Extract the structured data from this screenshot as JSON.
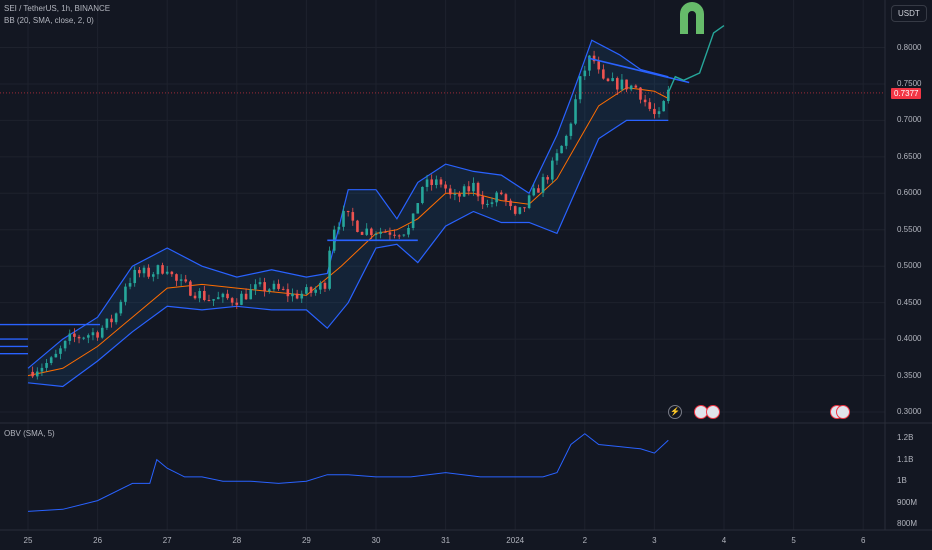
{
  "main_legend": {
    "symbol_line": "SEI / TetherUS, 1h, BINANCE",
    "indicator_line": "BB (20, SMA, close, 2, 0)"
  },
  "obv_legend": "OBV (SMA, 5)",
  "currency_button": "USDT",
  "current_price": "0.7377",
  "colors": {
    "background": "#131722",
    "up_candle": "#26a69a",
    "down_candle": "#ef5350",
    "bb_band": "#2962ff",
    "bb_basis": "#ff6d00",
    "bb_fill": "rgba(33,150,243,0.10)",
    "obv_line": "#2962ff",
    "trend_line": "#2962ff",
    "projection": "#26a69a",
    "price_tag": "#f23645",
    "magnet_icon": "#66bb6a"
  },
  "icons": [
    "magnet-icon",
    "lightning-icon",
    "us-flag-icon"
  ],
  "chart_data": [
    {
      "type": "candlestick",
      "title": "SEI / TetherUS, 1h, BINANCE",
      "x_ticks": [
        "25",
        "26",
        "27",
        "28",
        "29",
        "30",
        "31",
        "2024",
        "2",
        "3",
        "4",
        "5",
        "6"
      ],
      "y_ticks": [
        "0.8000",
        "0.7500",
        "0.7000",
        "0.6500",
        "0.6000",
        "0.5500",
        "0.5000",
        "0.4500",
        "0.4000",
        "0.3500",
        "0.3000"
      ],
      "ylim": [
        0.29,
        0.86
      ],
      "last_price": 0.7377,
      "close_path": [
        [
          0,
          0.355
        ],
        [
          0.35,
          0.37
        ],
        [
          0.6,
          0.4
        ],
        [
          1.0,
          0.41
        ],
        [
          1.25,
          0.43
        ],
        [
          1.4,
          0.475
        ],
        [
          1.55,
          0.49
        ],
        [
          1.75,
          0.49
        ],
        [
          2.0,
          0.5
        ],
        [
          2.1,
          0.48
        ],
        [
          2.3,
          0.47
        ],
        [
          2.6,
          0.455
        ],
        [
          3.0,
          0.455
        ],
        [
          3.3,
          0.47
        ],
        [
          3.5,
          0.47
        ],
        [
          3.8,
          0.46
        ],
        [
          4.1,
          0.465
        ],
        [
          4.3,
          0.48
        ],
        [
          4.35,
          0.55
        ],
        [
          4.55,
          0.57
        ],
        [
          4.8,
          0.55
        ],
        [
          5.2,
          0.548
        ],
        [
          5.5,
          0.55
        ],
        [
          5.65,
          0.61
        ],
        [
          5.95,
          0.615
        ],
        [
          6.1,
          0.59
        ],
        [
          6.4,
          0.61
        ],
        [
          6.6,
          0.583
        ],
        [
          6.8,
          0.6
        ],
        [
          7.0,
          0.565
        ],
        [
          7.2,
          0.59
        ],
        [
          7.5,
          0.63
        ],
        [
          7.75,
          0.68
        ],
        [
          7.95,
          0.76
        ],
        [
          8.1,
          0.79
        ],
        [
          8.25,
          0.75
        ],
        [
          8.5,
          0.75
        ],
        [
          8.75,
          0.745
        ],
        [
          8.9,
          0.72
        ],
        [
          9.05,
          0.7
        ],
        [
          9.2,
          0.738
        ]
      ],
      "bollinger": {
        "upper": [
          [
            0,
            0.36
          ],
          [
            0.5,
            0.4
          ],
          [
            1.0,
            0.43
          ],
          [
            1.5,
            0.5
          ],
          [
            2.0,
            0.525
          ],
          [
            2.5,
            0.5
          ],
          [
            3.0,
            0.485
          ],
          [
            3.5,
            0.495
          ],
          [
            4.0,
            0.485
          ],
          [
            4.3,
            0.49
          ],
          [
            4.6,
            0.605
          ],
          [
            5.0,
            0.605
          ],
          [
            5.3,
            0.565
          ],
          [
            5.6,
            0.615
          ],
          [
            6.0,
            0.64
          ],
          [
            6.4,
            0.63
          ],
          [
            6.8,
            0.625
          ],
          [
            7.2,
            0.6
          ],
          [
            7.6,
            0.68
          ],
          [
            7.8,
            0.73
          ],
          [
            8.1,
            0.81
          ],
          [
            8.5,
            0.79
          ],
          [
            8.8,
            0.77
          ],
          [
            9.2,
            0.76
          ]
        ],
        "basis": [
          [
            0,
            0.35
          ],
          [
            0.5,
            0.36
          ],
          [
            1.0,
            0.39
          ],
          [
            1.5,
            0.43
          ],
          [
            2.0,
            0.47
          ],
          [
            2.5,
            0.475
          ],
          [
            3.0,
            0.47
          ],
          [
            3.5,
            0.465
          ],
          [
            4.0,
            0.46
          ],
          [
            4.5,
            0.5
          ],
          [
            5.0,
            0.545
          ],
          [
            5.3,
            0.55
          ],
          [
            5.6,
            0.565
          ],
          [
            6.0,
            0.6
          ],
          [
            6.4,
            0.6
          ],
          [
            6.8,
            0.59
          ],
          [
            7.2,
            0.585
          ],
          [
            7.6,
            0.62
          ],
          [
            7.9,
            0.67
          ],
          [
            8.2,
            0.72
          ],
          [
            8.6,
            0.745
          ],
          [
            9.0,
            0.74
          ],
          [
            9.2,
            0.73
          ]
        ],
        "lower": [
          [
            0,
            0.34
          ],
          [
            0.5,
            0.335
          ],
          [
            1.0,
            0.37
          ],
          [
            1.5,
            0.41
          ],
          [
            2.0,
            0.445
          ],
          [
            2.5,
            0.44
          ],
          [
            3.0,
            0.445
          ],
          [
            3.5,
            0.44
          ],
          [
            4.0,
            0.44
          ],
          [
            4.3,
            0.415
          ],
          [
            4.6,
            0.45
          ],
          [
            5.0,
            0.525
          ],
          [
            5.3,
            0.53
          ],
          [
            5.6,
            0.505
          ],
          [
            6.0,
            0.555
          ],
          [
            6.4,
            0.575
          ],
          [
            6.8,
            0.56
          ],
          [
            7.2,
            0.56
          ],
          [
            7.6,
            0.545
          ],
          [
            7.9,
            0.61
          ],
          [
            8.2,
            0.675
          ],
          [
            8.6,
            0.7
          ],
          [
            9.0,
            0.7
          ],
          [
            9.2,
            0.7
          ]
        ]
      },
      "drawings": {
        "trend_line": [
          [
            8.05,
            0.7855
          ],
          [
            9.5,
            0.752
          ]
        ],
        "support_line": [
          [
            4.3,
            0.5355
          ],
          [
            5.6,
            0.5355
          ]
        ],
        "projection": [
          [
            9.2,
            0.738
          ],
          [
            9.3,
            0.76
          ],
          [
            9.42,
            0.755
          ],
          [
            9.65,
            0.765
          ],
          [
            9.85,
            0.82
          ],
          [
            10.0,
            0.83
          ]
        ],
        "left_levels": [
          0.42,
          0.4,
          0.39,
          0.38
        ]
      }
    },
    {
      "type": "line",
      "title": "OBV (SMA, 5)",
      "y_ticks": [
        "1.2B",
        "1.1B",
        "1B",
        "900M",
        "800M"
      ],
      "ylim": [
        0.78,
        1.27
      ],
      "unit": "B",
      "points": [
        [
          0,
          0.86
        ],
        [
          0.5,
          0.87
        ],
        [
          1.0,
          0.91
        ],
        [
          1.5,
          0.99
        ],
        [
          1.75,
          0.99
        ],
        [
          1.85,
          1.1
        ],
        [
          2.0,
          1.06
        ],
        [
          2.25,
          1.02
        ],
        [
          2.5,
          1.02
        ],
        [
          2.8,
          1.0
        ],
        [
          3.2,
          1.0
        ],
        [
          3.6,
          0.99
        ],
        [
          4.0,
          1.0
        ],
        [
          4.3,
          1.03
        ],
        [
          4.6,
          1.03
        ],
        [
          5.0,
          1.02
        ],
        [
          5.5,
          1.02
        ],
        [
          6.0,
          1.04
        ],
        [
          6.5,
          1.02
        ],
        [
          7.0,
          1.02
        ],
        [
          7.4,
          1.02
        ],
        [
          7.6,
          1.04
        ],
        [
          7.8,
          1.17
        ],
        [
          8.0,
          1.22
        ],
        [
          8.2,
          1.17
        ],
        [
          8.5,
          1.16
        ],
        [
          8.8,
          1.15
        ],
        [
          9.0,
          1.13
        ],
        [
          9.2,
          1.19
        ]
      ]
    }
  ]
}
